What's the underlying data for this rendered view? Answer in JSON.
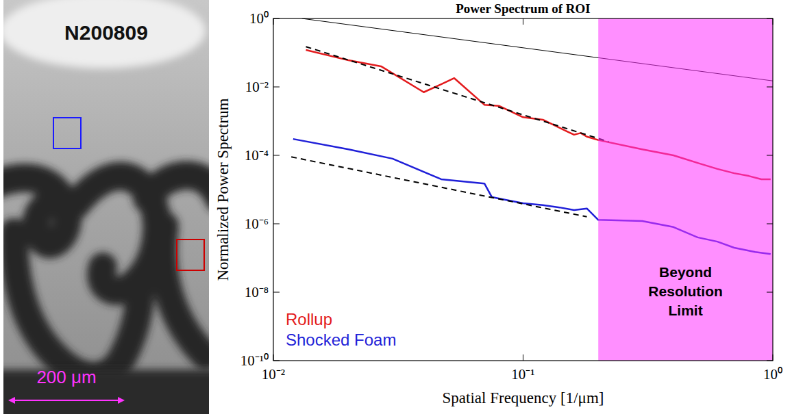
{
  "image_panel": {
    "label": "N200809",
    "scale_bar": "200 μm"
  },
  "chart_data": {
    "type": "line",
    "title": "Power Spectrum of ROI",
    "x_label": "Spatial Frequency [1/μm]",
    "y_label": "Normalized Power Spectrum",
    "log": true,
    "grid": false,
    "legend": "lower left",
    "xlim": [
      0.01,
      1
    ],
    "ylim": [
      1e-10,
      1
    ],
    "xticks": [
      {
        "value": 0.01,
        "label": "10⁻²"
      },
      {
        "value": 0.1,
        "label": "10⁻¹"
      },
      {
        "value": 1,
        "label": "10⁰"
      }
    ],
    "yticks": [
      {
        "value": 1e-10,
        "label": "10⁻¹⁰"
      },
      {
        "value": 1e-08,
        "label": "10⁻⁸"
      },
      {
        "value": 1e-06,
        "label": "10⁻⁶"
      },
      {
        "value": 0.0001,
        "label": "10⁻⁴"
      },
      {
        "value": 0.01,
        "label": "10⁻²"
      },
      {
        "value": 1,
        "label": "10⁰"
      }
    ],
    "series": [
      {
        "name": "Rollup",
        "color": "#e31a1c",
        "line_style": "solid",
        "x": [
          0.0135,
          0.02,
          0.027,
          0.04,
          0.047,
          0.053,
          0.07,
          0.08,
          0.1,
          0.12,
          0.15,
          0.16,
          0.17,
          0.18,
          0.2,
          0.3,
          0.4,
          0.5,
          0.6,
          0.7,
          0.8,
          0.9,
          0.98
        ],
        "values": [
          0.12,
          0.06,
          0.04,
          0.007,
          0.012,
          0.018,
          0.003,
          0.0028,
          0.0013,
          0.0011,
          0.0005,
          0.0004,
          0.00045,
          0.00035,
          0.00028,
          0.00015,
          0.0001,
          6e-05,
          4e-05,
          3e-05,
          2.5e-05,
          2e-05,
          2e-05
        ]
      },
      {
        "name": "Shocked Foam",
        "color": "#1f1fd8",
        "line_style": "solid",
        "x": [
          0.012,
          0.02,
          0.03,
          0.047,
          0.07,
          0.075,
          0.085,
          0.1,
          0.12,
          0.14,
          0.16,
          0.18,
          0.2,
          0.3,
          0.4,
          0.5,
          0.6,
          0.7,
          0.85,
          0.98
        ],
        "values": [
          0.0003,
          0.00015,
          8e-05,
          2e-05,
          1.5e-05,
          6e-06,
          5e-06,
          4e-06,
          3.5e-06,
          3e-06,
          2.5e-06,
          2.8e-06,
          1.3e-06,
          1.2e-06,
          8e-07,
          4e-07,
          3e-07,
          2e-07,
          1.5e-07,
          1.3e-07
        ]
      },
      {
        "color": "#000000",
        "line_style": "dashed",
        "x": [
          0.0135,
          0.22
        ],
        "values": [
          0.15,
          0.00025
        ]
      },
      {
        "color": "#000000",
        "line_style": "dashed",
        "x": [
          0.0118,
          0.18
        ],
        "values": [
          9e-05,
          1.6e-06
        ]
      },
      {
        "color": "#000000",
        "line_style": "solid",
        "x": [
          0.013,
          1
        ],
        "values": [
          1,
          0.015
        ]
      }
    ],
    "annotations": [
      {
        "text": "Beyond Resolution Limit",
        "x": [
          0.2,
          1
        ],
        "color": "#ff33ff"
      }
    ]
  }
}
